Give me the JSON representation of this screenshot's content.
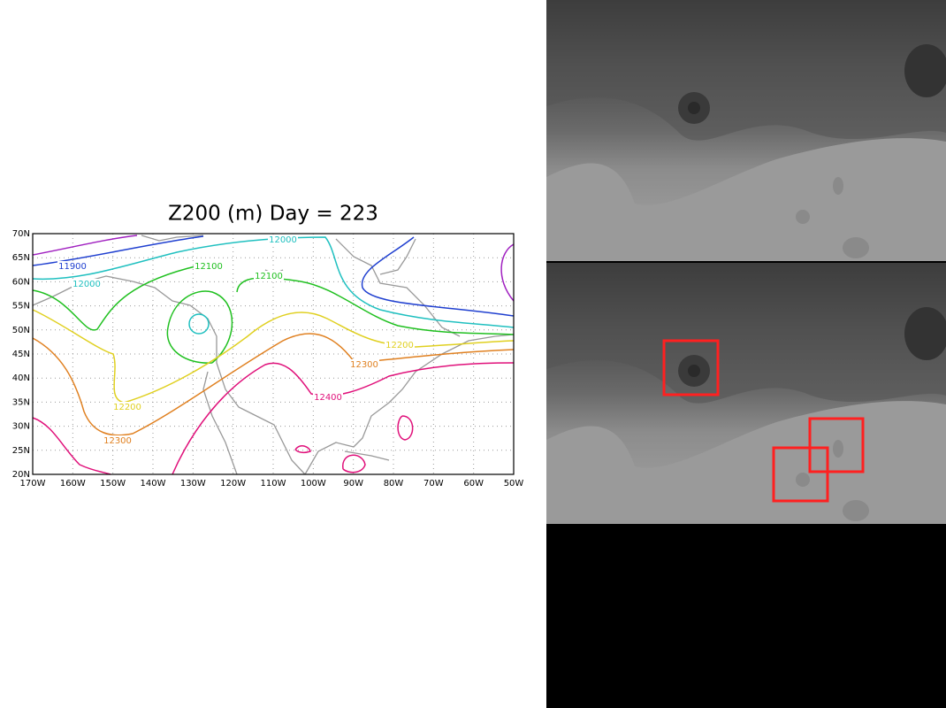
{
  "map": {
    "title": "Z200 (m) Day = 223",
    "lat_ticks": [
      {
        "value": 70,
        "label": "70N"
      },
      {
        "value": 65,
        "label": "65N"
      },
      {
        "value": 60,
        "label": "60N"
      },
      {
        "value": 55,
        "label": "55N"
      },
      {
        "value": 50,
        "label": "50N"
      },
      {
        "value": 45,
        "label": "45N"
      },
      {
        "value": 40,
        "label": "40N"
      },
      {
        "value": 35,
        "label": "35N"
      },
      {
        "value": 30,
        "label": "30N"
      },
      {
        "value": 25,
        "label": "25N"
      },
      {
        "value": 20,
        "label": "20N"
      }
    ],
    "lon_ticks": [
      {
        "value": -170,
        "label": "170W"
      },
      {
        "value": -160,
        "label": "160W"
      },
      {
        "value": -150,
        "label": "150W"
      },
      {
        "value": -140,
        "label": "140W"
      },
      {
        "value": -130,
        "label": "130W"
      },
      {
        "value": -120,
        "label": "120W"
      },
      {
        "value": -110,
        "label": "110W"
      },
      {
        "value": -100,
        "label": "100W"
      },
      {
        "value": -90,
        "label": "90W"
      },
      {
        "value": -80,
        "label": "80W"
      },
      {
        "value": -70,
        "label": "70W"
      },
      {
        "value": -60,
        "label": "60W"
      },
      {
        "value": -50,
        "label": "50W"
      }
    ],
    "contour_labels": [
      11900,
      12000,
      12000,
      12100,
      12100,
      12200,
      12200,
      12300,
      12300,
      12400
    ]
  }
}
